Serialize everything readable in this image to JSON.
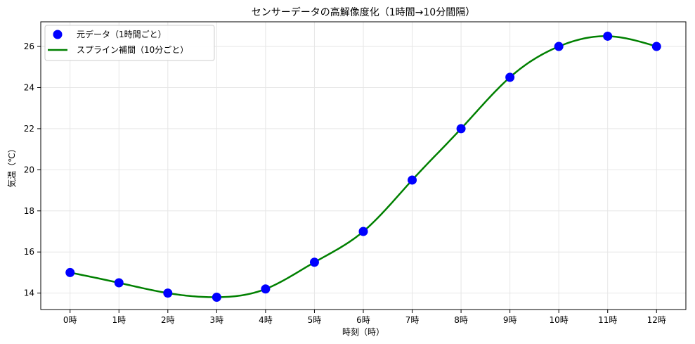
{
  "chart_data": {
    "type": "line",
    "title": "センサーデータの高解像度化（1時間→10分間隔）",
    "xlabel": "時刻（時）",
    "ylabel": "気温（℃）",
    "categories": [
      "0時",
      "1時",
      "2時",
      "3時",
      "4時",
      "5時",
      "6時",
      "7時",
      "8時",
      "9時",
      "10時",
      "11時",
      "12時"
    ],
    "x": [
      0,
      1,
      2,
      3,
      4,
      5,
      6,
      7,
      8,
      9,
      10,
      11,
      12
    ],
    "xlim": [
      -0.6,
      12.6
    ],
    "ylim": [
      13.2,
      27.2
    ],
    "yticks": [
      14,
      16,
      18,
      20,
      22,
      24,
      26
    ],
    "grid": true,
    "legend_position": "top-left",
    "series": [
      {
        "name": "元データ（1時間ごと）",
        "kind": "scatter",
        "color": "#0000ff",
        "values": [
          15.0,
          14.5,
          14.0,
          13.8,
          14.2,
          15.5,
          17.0,
          19.5,
          22.0,
          24.5,
          26.0,
          26.5,
          26.0
        ]
      },
      {
        "name": "スプライン補間（10分ごと）",
        "kind": "line",
        "color": "#008000",
        "interpolation": "cubic-spline",
        "step": 0.1667,
        "values": [
          15.0,
          14.5,
          14.0,
          13.8,
          14.2,
          15.5,
          17.0,
          19.5,
          22.0,
          24.5,
          26.0,
          26.5,
          26.0
        ]
      }
    ]
  }
}
